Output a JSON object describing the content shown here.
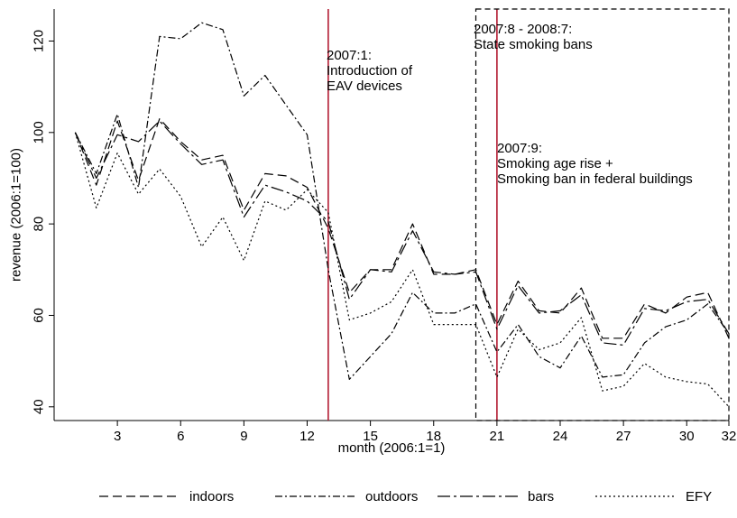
{
  "chart_data": {
    "type": "line",
    "xlabel": "month (2006:1=1)",
    "ylabel": "revenue (2006:1=100)",
    "xlim": [
      0,
      32
    ],
    "ylim": [
      37,
      127
    ],
    "x_ticks": [
      3,
      6,
      9,
      12,
      15,
      18,
      21,
      24,
      27,
      30,
      32
    ],
    "y_ticks": [
      40,
      60,
      80,
      100,
      120
    ],
    "grid": false,
    "legend_position": "bottom",
    "x": [
      1,
      2,
      3,
      4,
      5,
      6,
      7,
      8,
      9,
      10,
      11,
      12,
      13,
      14,
      15,
      16,
      17,
      18,
      19,
      20,
      21,
      22,
      23,
      24,
      25,
      26,
      27,
      28,
      29,
      30,
      31,
      32
    ],
    "series": [
      {
        "name": "indoors",
        "dash": "10,5",
        "values": [
          100,
          88.5,
          102.5,
          89.5,
          103,
          98,
          94,
          95,
          83,
          91,
          90.5,
          88,
          79,
          65,
          70,
          70,
          80,
          69,
          69,
          70,
          58,
          67.5,
          61,
          60.5,
          66,
          55,
          55,
          62.5,
          60.5,
          64,
          65,
          55
        ]
      },
      {
        "name": "outdoors",
        "dash": "8,3,2,3",
        "values": [
          100,
          91,
          104,
          88,
          121,
          120.5,
          124,
          122.5,
          108,
          112.5,
          106,
          99.5,
          70,
          46,
          51,
          56,
          65,
          60.5,
          60.5,
          62.5,
          52,
          58,
          51,
          48.5,
          55.5,
          46.5,
          47,
          54,
          57.5,
          59,
          62.5,
          56
        ]
      },
      {
        "name": "bars",
        "dash": "14,4,3,4",
        "values": [
          100,
          90,
          99.5,
          98,
          102.5,
          97.5,
          93,
          94,
          81.5,
          88.5,
          87,
          85,
          80.5,
          63.5,
          70,
          69.5,
          78.5,
          69.5,
          69,
          69.5,
          57,
          66.5,
          60.5,
          61,
          64.5,
          54,
          53.5,
          61.5,
          61,
          63,
          63.5,
          56
        ]
      },
      {
        "name": "EFY",
        "dash": "2,3",
        "values": [
          100,
          83.5,
          95.5,
          86.5,
          92,
          86,
          75,
          81.5,
          72,
          85,
          83,
          87.5,
          82.5,
          59,
          60.5,
          63,
          70,
          58,
          58,
          58,
          46.5,
          57,
          52.5,
          54,
          59.5,
          43.5,
          44.5,
          49.5,
          46.5,
          45.5,
          45,
          40
        ]
      }
    ],
    "vlines": [
      {
        "x": 13,
        "color": "#b21b32"
      },
      {
        "x": 21,
        "color": "#b21b32"
      }
    ],
    "dashed_box": {
      "x_from": 20,
      "x_to": 32,
      "y_from": 37,
      "y_to": 127
    },
    "annotations": [
      {
        "id": "eav",
        "lines": [
          "2007:1:",
          "Introduction of",
          "EAV devices"
        ]
      },
      {
        "id": "bans",
        "lines": [
          "2007:8 - 2008:7:",
          "State smoking bans"
        ]
      },
      {
        "id": "age",
        "lines": [
          "2007:9:",
          "Smoking age rise +",
          "Smoking ban in federal buildings"
        ]
      }
    ]
  }
}
